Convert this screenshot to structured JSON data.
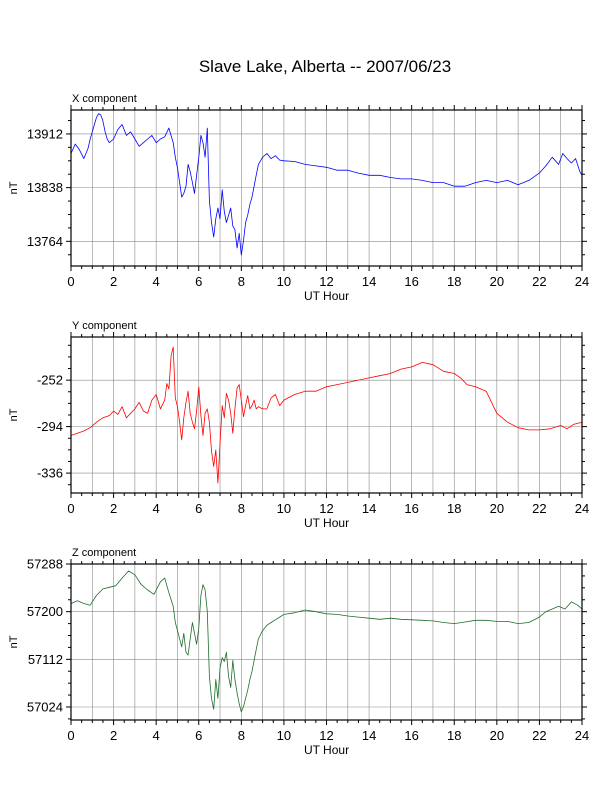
{
  "page": {
    "title": "Slave Lake, Alberta -- 2007/06/23"
  },
  "chart_data": [
    {
      "type": "line",
      "title": "X component",
      "xlabel": "UT Hour",
      "ylabel": "nT",
      "xlim": [
        0,
        24
      ],
      "ylim": [
        13730,
        13945
      ],
      "xticks": [
        0,
        2,
        4,
        6,
        8,
        10,
        12,
        14,
        16,
        18,
        20,
        22,
        24
      ],
      "yticks": [
        13764,
        13838,
        13912
      ],
      "grid": true,
      "color": "#0000ff",
      "series": [
        {
          "x": [
            0,
            0.2,
            0.4,
            0.6,
            0.8,
            0.9,
            1.0,
            1.1,
            1.2,
            1.3,
            1.4,
            1.5,
            1.6,
            1.7,
            1.8,
            2.0,
            2.2,
            2.4,
            2.6,
            2.8,
            3.0,
            3.2,
            3.4,
            3.6,
            3.8,
            4.0,
            4.2,
            4.4,
            4.6,
            4.8,
            4.9,
            5.0,
            5.1,
            5.2,
            5.3,
            5.4,
            5.5,
            5.6,
            5.7,
            5.8,
            5.9,
            6.0,
            6.1,
            6.2,
            6.3,
            6.4,
            6.5,
            6.6,
            6.7,
            6.8,
            6.9,
            7.0,
            7.1,
            7.2,
            7.3,
            7.4,
            7.5,
            7.6,
            7.7,
            7.8,
            7.9,
            8.0,
            8.1,
            8.2,
            8.3,
            8.4,
            8.5,
            8.6,
            8.7,
            8.8,
            9.0,
            9.2,
            9.4,
            9.6,
            9.8,
            10.0,
            10.5,
            11.0,
            11.5,
            12.0,
            12.5,
            13.0,
            13.5,
            14.0,
            14.5,
            15.0,
            15.5,
            16.0,
            16.5,
            17.0,
            17.5,
            18.0,
            18.5,
            19.0,
            19.5,
            20.0,
            20.5,
            21.0,
            21.5,
            22.0,
            22.3,
            22.6,
            22.9,
            23.1,
            23.3,
            23.5,
            23.7,
            23.9,
            24.0
          ],
          "y": [
            13885,
            13898,
            13890,
            13878,
            13892,
            13905,
            13915,
            13925,
            13935,
            13940,
            13938,
            13930,
            13915,
            13905,
            13900,
            13905,
            13918,
            13925,
            13910,
            13915,
            13905,
            13895,
            13900,
            13905,
            13910,
            13900,
            13905,
            13908,
            13920,
            13900,
            13880,
            13865,
            13845,
            13825,
            13830,
            13840,
            13870,
            13860,
            13845,
            13830,
            13855,
            13880,
            13910,
            13900,
            13880,
            13920,
            13820,
            13790,
            13770,
            13795,
            13810,
            13795,
            13835,
            13805,
            13790,
            13800,
            13810,
            13785,
            13780,
            13755,
            13775,
            13745,
            13765,
            13790,
            13800,
            13815,
            13825,
            13840,
            13855,
            13870,
            13880,
            13885,
            13878,
            13882,
            13876,
            13875,
            13874,
            13870,
            13868,
            13866,
            13862,
            13862,
            13858,
            13855,
            13855,
            13852,
            13850,
            13850,
            13848,
            13845,
            13845,
            13840,
            13840,
            13845,
            13848,
            13845,
            13848,
            13842,
            13848,
            13858,
            13868,
            13880,
            13870,
            13885,
            13878,
            13872,
            13878,
            13860,
            13855
          ]
        }
      ]
    },
    {
      "type": "line",
      "title": "Y component",
      "xlabel": "UT Hour",
      "ylabel": "nT",
      "xlim": [
        0,
        24
      ],
      "ylim": [
        -354,
        -213
      ],
      "xticks": [
        0,
        2,
        4,
        6,
        8,
        10,
        12,
        14,
        16,
        18,
        20,
        22,
        24
      ],
      "yticks": [
        -336,
        -294,
        -252
      ],
      "grid": true,
      "color": "#ff0000",
      "series": [
        {
          "x": [
            0,
            0.3,
            0.6,
            0.9,
            1.2,
            1.5,
            1.8,
            2.0,
            2.2,
            2.4,
            2.6,
            2.8,
            3.0,
            3.2,
            3.4,
            3.6,
            3.8,
            4.0,
            4.2,
            4.4,
            4.5,
            4.6,
            4.7,
            4.8,
            4.9,
            5.0,
            5.1,
            5.2,
            5.3,
            5.4,
            5.5,
            5.6,
            5.7,
            5.8,
            5.9,
            6.0,
            6.1,
            6.2,
            6.3,
            6.4,
            6.5,
            6.6,
            6.7,
            6.8,
            6.9,
            7.0,
            7.1,
            7.2,
            7.3,
            7.4,
            7.5,
            7.6,
            7.7,
            7.8,
            7.9,
            8.0,
            8.1,
            8.2,
            8.3,
            8.4,
            8.5,
            8.6,
            8.7,
            8.8,
            9.0,
            9.2,
            9.4,
            9.6,
            9.8,
            10.0,
            10.5,
            11.0,
            11.5,
            12.0,
            12.5,
            13.0,
            13.5,
            14.0,
            14.5,
            15.0,
            15.5,
            16.0,
            16.5,
            17.0,
            17.5,
            18.0,
            18.3,
            18.6,
            19.0,
            19.5,
            20.0,
            20.5,
            21.0,
            21.5,
            22.0,
            22.5,
            23.0,
            23.3,
            23.6,
            24.0
          ],
          "y": [
            -302,
            -300,
            -298,
            -295,
            -290,
            -286,
            -284,
            -280,
            -283,
            -276,
            -286,
            -282,
            -278,
            -272,
            -280,
            -282,
            -270,
            -265,
            -278,
            -270,
            -255,
            -260,
            -230,
            -222,
            -268,
            -276,
            -290,
            -306,
            -286,
            -272,
            -262,
            -282,
            -290,
            -296,
            -280,
            -258,
            -284,
            -302,
            -282,
            -278,
            -290,
            -316,
            -330,
            -315,
            -345,
            -310,
            -275,
            -286,
            -264,
            -270,
            -282,
            -300,
            -278,
            -259,
            -256,
            -270,
            -285,
            -275,
            -266,
            -278,
            -275,
            -270,
            -278,
            -276,
            -278,
            -278,
            -268,
            -265,
            -275,
            -270,
            -265,
            -262,
            -262,
            -258,
            -256,
            -254,
            -252,
            -250,
            -248,
            -246,
            -242,
            -240,
            -236,
            -238,
            -244,
            -246,
            -250,
            -256,
            -258,
            -262,
            -282,
            -290,
            -295,
            -297,
            -297,
            -296,
            -293,
            -296,
            -292,
            -290
          ]
        }
      ]
    },
    {
      "type": "line",
      "title": "Z component",
      "xlabel": "UT Hour",
      "ylabel": "nT",
      "xlim": [
        0,
        24
      ],
      "ylim": [
        57000,
        57288
      ],
      "xticks": [
        0,
        2,
        4,
        6,
        8,
        10,
        12,
        14,
        16,
        18,
        20,
        22,
        24
      ],
      "yticks": [
        57024,
        57112,
        57200,
        57288
      ],
      "grid": true,
      "color": "#1e6e2a",
      "series": [
        {
          "x": [
            0,
            0.3,
            0.6,
            0.9,
            1.2,
            1.5,
            1.8,
            2.1,
            2.4,
            2.7,
            3.0,
            3.3,
            3.6,
            3.9,
            4.2,
            4.4,
            4.6,
            4.8,
            4.9,
            5.0,
            5.1,
            5.2,
            5.3,
            5.4,
            5.5,
            5.6,
            5.7,
            5.8,
            5.9,
            6.0,
            6.1,
            6.2,
            6.3,
            6.4,
            6.5,
            6.6,
            6.7,
            6.8,
            6.9,
            7.0,
            7.1,
            7.2,
            7.3,
            7.4,
            7.5,
            7.6,
            7.7,
            7.8,
            7.9,
            8.0,
            8.1,
            8.2,
            8.3,
            8.4,
            8.5,
            8.6,
            8.7,
            8.8,
            9.0,
            9.2,
            9.4,
            9.6,
            9.8,
            10.0,
            10.5,
            11.0,
            11.5,
            12.0,
            12.5,
            13.0,
            13.5,
            14.0,
            14.5,
            15.0,
            15.5,
            16.0,
            16.5,
            17.0,
            17.5,
            18.0,
            18.5,
            19.0,
            19.5,
            20.0,
            20.5,
            21.0,
            21.5,
            22.0,
            22.3,
            22.6,
            22.9,
            23.2,
            23.5,
            23.8,
            24.0
          ],
          "y": [
            57215,
            57220,
            57215,
            57212,
            57230,
            57242,
            57245,
            57248,
            57262,
            57275,
            57268,
            57250,
            57240,
            57232,
            57255,
            57262,
            57235,
            57210,
            57180,
            57165,
            57150,
            57135,
            57160,
            57125,
            57120,
            57150,
            57180,
            57160,
            57140,
            57170,
            57230,
            57250,
            57240,
            57200,
            57080,
            57040,
            57020,
            57075,
            57040,
            57095,
            57115,
            57108,
            57125,
            57080,
            57060,
            57110,
            57075,
            57050,
            57030,
            57015,
            57025,
            57040,
            57055,
            57075,
            57090,
            57110,
            57130,
            57150,
            57165,
            57175,
            57180,
            57185,
            57190,
            57195,
            57198,
            57203,
            57200,
            57196,
            57195,
            57192,
            57190,
            57188,
            57186,
            57188,
            57186,
            57185,
            57184,
            57183,
            57180,
            57178,
            57181,
            57184,
            57184,
            57182,
            57182,
            57178,
            57180,
            57190,
            57200,
            57205,
            57210,
            57205,
            57218,
            57212,
            57205
          ]
        }
      ]
    }
  ]
}
